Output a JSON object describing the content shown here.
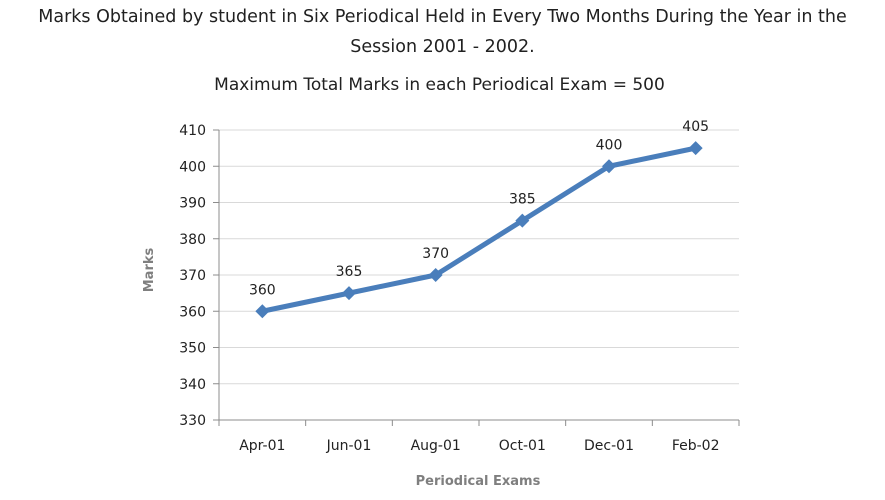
{
  "heading": {
    "line1": "Marks Obtained by student in Six Periodical Held in Every Two Months During the Year in the",
    "line2": "Session 2001 - 2002."
  },
  "chart_data": {
    "type": "line",
    "subtitle": "Maximum Total Marks in each Periodical Exam = 500",
    "xlabel": "Periodical Exams",
    "ylabel": "Marks",
    "categories": [
      "Apr-01",
      "Jun-01",
      "Aug-01",
      "Oct-01",
      "Dec-01",
      "Feb-02"
    ],
    "series": [
      {
        "values": [
          360,
          365,
          370,
          385,
          400,
          405
        ]
      }
    ],
    "data_labels": [
      "360",
      "365",
      "370",
      "385",
      "400",
      "405"
    ],
    "ylim": [
      330,
      410
    ],
    "yticks": [
      330,
      340,
      350,
      360,
      370,
      380,
      390,
      400,
      410
    ],
    "grid": true,
    "legend": "none",
    "colors": {
      "line": "#4a7ebb",
      "grid": "#d9d9d9",
      "axis": "#8c8c8c",
      "axis_title": "#7f7f7f"
    }
  }
}
